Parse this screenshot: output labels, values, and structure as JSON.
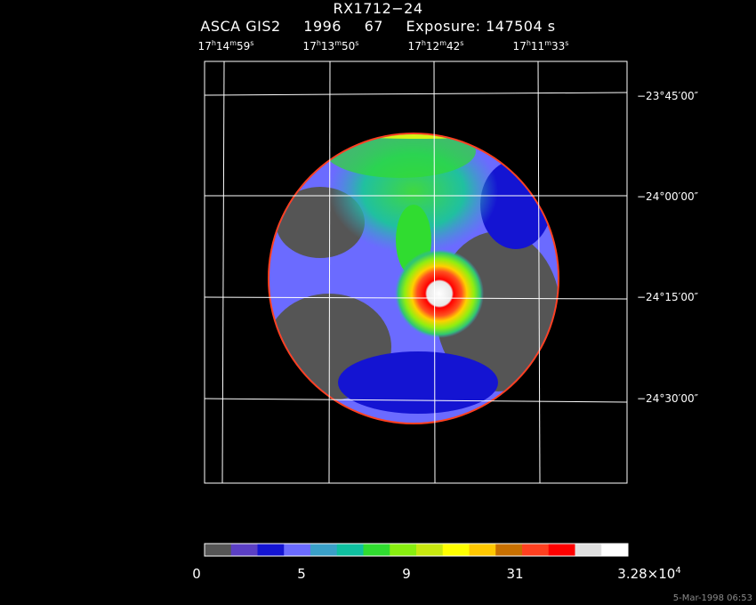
{
  "title": {
    "object": "RX1712−24",
    "instrument": "ASCA GIS2",
    "year": "1996",
    "sequence": "67",
    "exposure": "Exposure: 147504 s"
  },
  "ra_ticks": [
    {
      "h": "17",
      "m": "14",
      "s": "59"
    },
    {
      "h": "17",
      "m": "13",
      "s": "50"
    },
    {
      "h": "17",
      "m": "12",
      "s": "42"
    },
    {
      "h": "17",
      "m": "11",
      "s": "33"
    }
  ],
  "dec_ticks": [
    "−23°45′00″",
    "−24°00′00″",
    "−24°15′00″",
    "−24°30′00″"
  ],
  "colorbar": {
    "colors": [
      "#555555",
      "#5b3fc4",
      "#1414d2",
      "#6b6bff",
      "#3aa0c8",
      "#0fc0a0",
      "#30dc30",
      "#88ee10",
      "#c8e810",
      "#ffff00",
      "#ffc800",
      "#c87000",
      "#ff4020",
      "#ff0000",
      "#e0e0e0",
      "#ffffff"
    ],
    "labels": [
      "0",
      "5",
      "9",
      "31"
    ],
    "max_label_mantissa": "3.28×10",
    "max_label_exponent": "4"
  },
  "timestamp": "5-Mar-1998 06:53"
}
